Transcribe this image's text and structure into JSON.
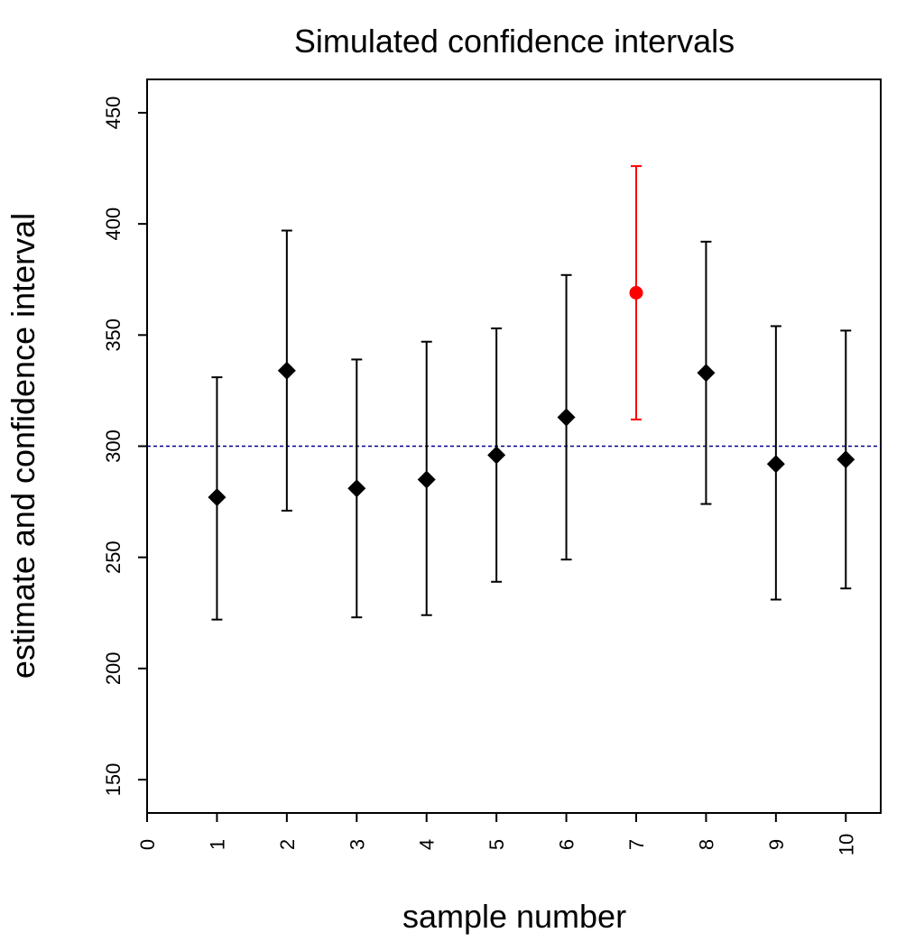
{
  "chart_data": {
    "type": "scatter",
    "title": "Simulated confidence intervals",
    "xlabel": "sample number",
    "ylabel": "estimate and confidence interval",
    "xlim": [
      0,
      10.5
    ],
    "ylim": [
      135,
      465
    ],
    "xticks": [
      "0",
      "1",
      "2",
      "3",
      "4",
      "5",
      "6",
      "7",
      "8",
      "9",
      "10"
    ],
    "yticks": [
      "150",
      "200",
      "250",
      "300",
      "350",
      "400",
      "450"
    ],
    "reference_line": {
      "y": 300,
      "style": "dashed",
      "color": "#00008b"
    },
    "points": [
      {
        "x": 1,
        "estimate": 277,
        "lower": 222,
        "upper": 331,
        "highlight": false
      },
      {
        "x": 2,
        "estimate": 334,
        "lower": 271,
        "upper": 397,
        "highlight": false
      },
      {
        "x": 3,
        "estimate": 281,
        "lower": 223,
        "upper": 339,
        "highlight": false
      },
      {
        "x": 4,
        "estimate": 285,
        "lower": 224,
        "upper": 347,
        "highlight": false
      },
      {
        "x": 5,
        "estimate": 296,
        "lower": 239,
        "upper": 353,
        "highlight": false
      },
      {
        "x": 6,
        "estimate": 313,
        "lower": 249,
        "upper": 377,
        "highlight": false
      },
      {
        "x": 7,
        "estimate": 369,
        "lower": 312,
        "upper": 426,
        "highlight": true
      },
      {
        "x": 8,
        "estimate": 333,
        "lower": 274,
        "upper": 392,
        "highlight": false
      },
      {
        "x": 9,
        "estimate": 292,
        "lower": 231,
        "upper": 354,
        "highlight": false
      },
      {
        "x": 10,
        "estimate": 294,
        "lower": 236,
        "upper": 352,
        "highlight": false
      }
    ],
    "colors": {
      "normal": "#000000",
      "highlight": "#ff0000",
      "reference": "#00008b"
    },
    "grid": false,
    "legend": "none"
  }
}
